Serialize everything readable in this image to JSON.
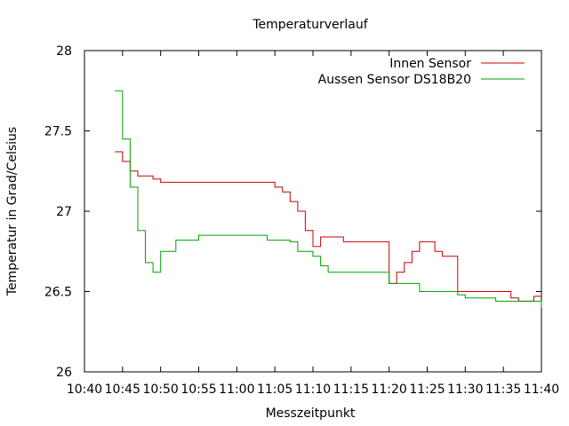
{
  "chart_data": {
    "type": "line",
    "title": "Temperaturverlauf",
    "xlabel": "Messzeitpunkt",
    "ylabel": "Temperatur in Grad/Celsius",
    "xlim": [
      "10:40",
      "11:40"
    ],
    "ylim": [
      26,
      28
    ],
    "x_ticks": [
      "10:40",
      "10:45",
      "10:50",
      "10:55",
      "11:00",
      "11:05",
      "11:10",
      "11:15",
      "11:20",
      "11:25",
      "11:30",
      "11:35",
      "11:40"
    ],
    "y_ticks": [
      "26",
      "26.5",
      "27",
      "27.5",
      "28"
    ],
    "grid": false,
    "legend_position": "top-right",
    "series": [
      {
        "name": "Innen Sensor",
        "color": "#cc0000",
        "x": [
          "10:44",
          "10:45",
          "10:46",
          "10:47",
          "10:48",
          "10:49",
          "10:50",
          "10:52",
          "10:55",
          "10:58",
          "11:00",
          "11:02",
          "11:04",
          "11:05",
          "11:06",
          "11:07",
          "11:08",
          "11:09",
          "11:10",
          "11:11",
          "11:12",
          "11:13",
          "11:14",
          "11:15",
          "11:17",
          "11:19",
          "11:20",
          "11:21",
          "11:22",
          "11:23",
          "11:24",
          "11:25",
          "11:26",
          "11:27",
          "11:28",
          "11:29",
          "11:30",
          "11:31",
          "11:32",
          "11:34",
          "11:36",
          "11:37",
          "11:38",
          "11:39",
          "11:40"
        ],
        "values": [
          27.37,
          27.31,
          27.25,
          27.22,
          27.22,
          27.2,
          27.18,
          27.18,
          27.18,
          27.18,
          27.18,
          27.18,
          27.18,
          27.15,
          27.12,
          27.06,
          27.0,
          26.88,
          26.78,
          26.84,
          26.84,
          26.84,
          26.81,
          26.81,
          26.81,
          26.81,
          26.55,
          26.62,
          26.68,
          26.75,
          26.81,
          26.81,
          26.75,
          26.72,
          26.72,
          26.5,
          26.5,
          26.5,
          26.5,
          26.5,
          26.46,
          26.44,
          26.44,
          26.47,
          26.47
        ]
      },
      {
        "name": "Aussen Sensor DS18B20",
        "color": "#00a000",
        "x": [
          "10:44",
          "10:45",
          "10:46",
          "10:47",
          "10:48",
          "10:49",
          "10:50",
          "10:52",
          "10:55",
          "10:58",
          "11:00",
          "11:02",
          "11:04",
          "11:05",
          "11:06",
          "11:07",
          "11:08",
          "11:09",
          "11:10",
          "11:11",
          "11:12",
          "11:13",
          "11:14",
          "11:15",
          "11:17",
          "11:19",
          "11:20",
          "11:21",
          "11:22",
          "11:23",
          "11:24",
          "11:25",
          "11:26",
          "11:27",
          "11:28",
          "11:29",
          "11:30",
          "11:31",
          "11:32",
          "11:34",
          "11:36",
          "11:37",
          "11:38",
          "11:39",
          "11:40"
        ],
        "values": [
          27.75,
          27.45,
          27.15,
          26.88,
          26.68,
          26.62,
          26.75,
          26.82,
          26.85,
          26.85,
          26.85,
          26.85,
          26.82,
          26.82,
          26.82,
          26.81,
          26.75,
          26.75,
          26.72,
          26.66,
          26.62,
          26.62,
          26.62,
          26.62,
          26.62,
          26.62,
          26.55,
          26.55,
          26.55,
          26.55,
          26.5,
          26.5,
          26.5,
          26.5,
          26.5,
          26.48,
          26.46,
          26.46,
          26.46,
          26.44,
          26.44,
          26.44,
          26.44,
          26.44,
          26.4
        ]
      }
    ]
  }
}
